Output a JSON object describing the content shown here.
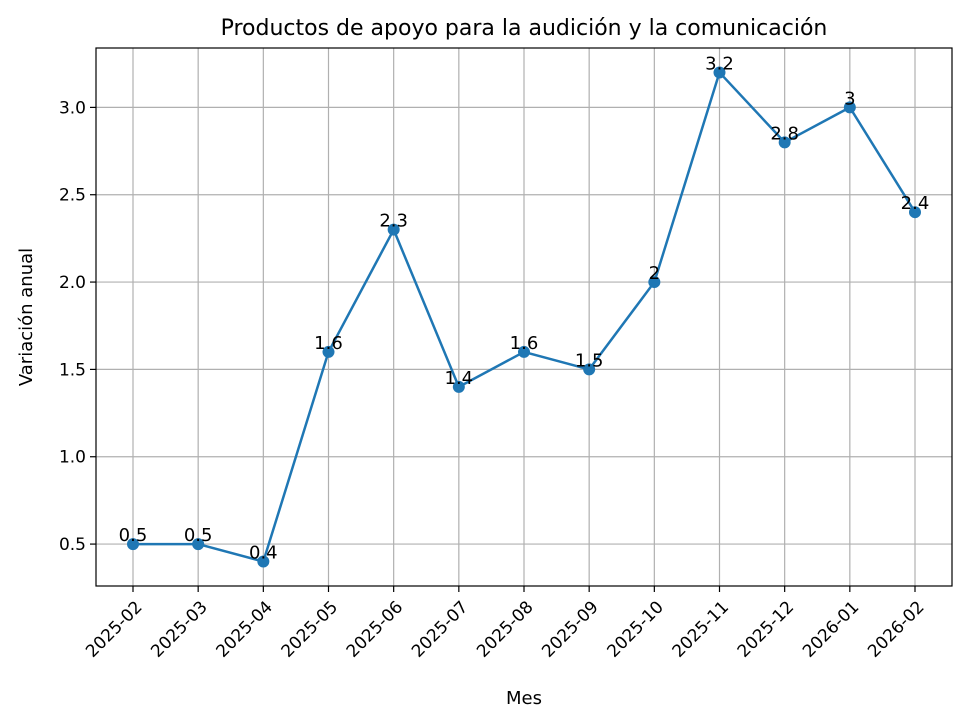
{
  "chart_data": {
    "type": "line",
    "title": "Productos de apoyo para la audición y la comunicación",
    "xlabel": "Mes",
    "ylabel": "Variación anual",
    "categories": [
      "2025-02",
      "2025-03",
      "2025-04",
      "2025-05",
      "2025-06",
      "2025-07",
      "2025-08",
      "2025-09",
      "2025-10",
      "2025-11",
      "2025-12",
      "2026-01",
      "2026-02"
    ],
    "values": [
      0.5,
      0.5,
      0.4,
      1.6,
      2.3,
      1.4,
      1.6,
      1.5,
      2.0,
      3.2,
      2.8,
      3.0,
      2.4
    ],
    "data_labels": [
      "0.5",
      "0.5",
      "0.4",
      "1.6",
      "2.3",
      "1.4",
      "1.6",
      "1.5",
      "2",
      "3.2",
      "2.8",
      "3",
      "2.4"
    ],
    "yticks": [
      0.5,
      1.0,
      1.5,
      2.0,
      2.5,
      3.0
    ],
    "ytick_labels": [
      "0.5",
      "1.0",
      "1.5",
      "2.0",
      "2.5",
      "3.0"
    ],
    "ylim": [
      0.26,
      3.34
    ],
    "grid": true,
    "line_color": "#1f77b4",
    "grid_color": "#b0b0b0"
  }
}
